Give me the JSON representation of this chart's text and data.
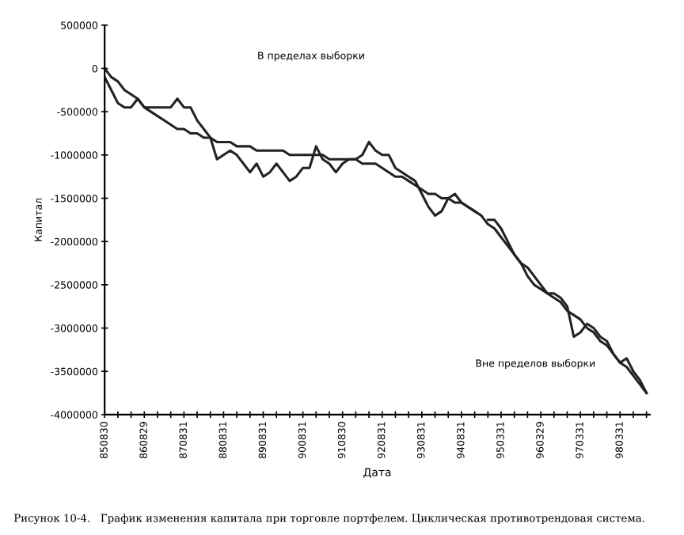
{
  "chart_data": {
    "type": "line",
    "xlabel": "Дата",
    "ylabel": "Капитал",
    "annotations": [
      "В пределах выборки",
      "Вне пределов выборки",
      "Рисунок 10-4.   График изменения капитала при торговле портфелем. Циклическая противотрендовая система."
    ],
    "categories": [
      "850830",
      null,
      null,
      null,
      null,
      null,
      "860829",
      null,
      null,
      null,
      null,
      null,
      "870831",
      null,
      null,
      null,
      null,
      null,
      "880831",
      null,
      null,
      null,
      null,
      null,
      "890831",
      null,
      null,
      null,
      null,
      null,
      "900831",
      null,
      null,
      null,
      null,
      null,
      "910830",
      null,
      null,
      null,
      null,
      null,
      "920831",
      null,
      null,
      null,
      null,
      null,
      "930831",
      null,
      null,
      null,
      null,
      null,
      "940831",
      null,
      null,
      null,
      null,
      null,
      "950331",
      null,
      null,
      null,
      null,
      null,
      "960329",
      null,
      null,
      null,
      null,
      null,
      "970331",
      null,
      null,
      null,
      null,
      null,
      "980331",
      null,
      null,
      null,
      null
    ],
    "ylim": [
      -4000000,
      500000
    ],
    "yticks": [
      500000,
      0,
      -500000,
      -1000000,
      -1500000,
      -2000000,
      -2500000,
      -3000000,
      -3500000,
      -4000000
    ],
    "grid": false,
    "series": [
      {
        "color": "#222222",
        "values": [
          -100000,
          -250000,
          -400000,
          -450000,
          -450000,
          -350000,
          -450000,
          -450000,
          -450000,
          -450000,
          -450000,
          -350000,
          -450000,
          -450000,
          -600000,
          -700000,
          -800000,
          -1050000,
          -1000000,
          -950000,
          -1000000,
          -1100000,
          -1200000,
          -1100000,
          -1250000,
          -1200000,
          -1100000,
          -1200000,
          -1300000,
          -1250000,
          -1150000,
          -1150000,
          -900000,
          -1050000,
          -1100000,
          -1200000,
          -1100000,
          -1050000,
          -1050000,
          -1000000,
          -850000,
          -950000,
          -1000000,
          -1000000,
          -1150000,
          -1200000,
          -1250000,
          -1300000,
          -1450000,
          -1600000,
          -1700000,
          -1650000,
          -1500000,
          -1450000,
          -1550000,
          -1600000,
          -1650000,
          null,
          -1750000,
          -1750000,
          -1850000,
          -2000000,
          -2150000,
          -2250000,
          -2400000,
          -2500000,
          -2550000,
          -2600000,
          -2600000,
          -2650000,
          -2750000,
          -3100000,
          -3050000,
          -2950000,
          -3000000,
          -3100000,
          -3150000,
          -3300000,
          -3400000,
          -3350000,
          -3500000,
          -3600000,
          -3750000
        ]
      },
      {
        "color": "#222222",
        "values": [
          0,
          -100000,
          -150000,
          -250000,
          -300000,
          -350000,
          -450000,
          -500000,
          -550000,
          -600000,
          -650000,
          -700000,
          -700000,
          -750000,
          -750000,
          -800000,
          -800000,
          -850000,
          -850000,
          -850000,
          -900000,
          -900000,
          -900000,
          -950000,
          -950000,
          -950000,
          -950000,
          -950000,
          -1000000,
          -1000000,
          -1000000,
          -1000000,
          -1000000,
          -1000000,
          -1050000,
          -1050000,
          -1050000,
          -1050000,
          -1050000,
          -1100000,
          -1100000,
          -1100000,
          -1150000,
          -1200000,
          -1250000,
          -1250000,
          -1300000,
          -1350000,
          -1400000,
          -1450000,
          -1450000,
          -1500000,
          -1500000,
          -1550000,
          -1550000,
          -1600000,
          -1650000,
          -1700000,
          -1800000,
          -1850000,
          -1950000,
          -2050000,
          -2150000,
          -2250000,
          -2300000,
          -2400000,
          -2500000,
          -2600000,
          -2650000,
          -2700000,
          -2800000,
          -2850000,
          -2900000,
          -3000000,
          -3050000,
          -3150000,
          -3200000,
          -3300000,
          -3400000,
          -3450000,
          -3550000,
          -3650000,
          -3750000
        ]
      }
    ]
  }
}
